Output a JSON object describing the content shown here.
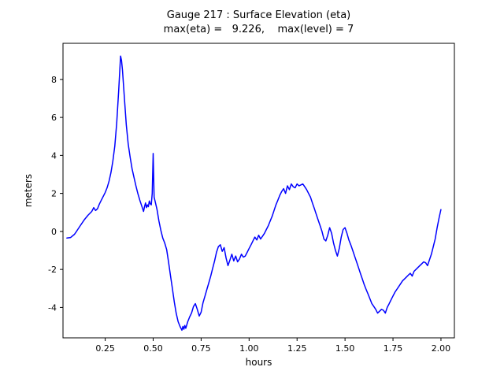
{
  "figure": {
    "background": "#ffffff",
    "axis_color": "#000000"
  },
  "chart_data": {
    "type": "line",
    "title": "Gauge 217 : Surface Elevation (eta)",
    "subtitle": "max(eta) =   9.226,    max(level) = 7",
    "xlabel": "hours",
    "ylabel": "meters",
    "xlim": [
      0.03,
      2.07
    ],
    "ylim": [
      -5.6,
      9.9
    ],
    "xticks": [
      0.25,
      0.5,
      0.75,
      1.0,
      1.25,
      1.5,
      1.75,
      2.0
    ],
    "xtick_labels": [
      "0.25",
      "0.50",
      "0.75",
      "1.00",
      "1.25",
      "1.50",
      "1.75",
      "2.00"
    ],
    "yticks": [
      -4,
      -2,
      0,
      2,
      4,
      6,
      8
    ],
    "ytick_labels": [
      "-4",
      "-2",
      "0",
      "2",
      "4",
      "6",
      "8"
    ],
    "grid": false,
    "legend": "none",
    "line_color": "#0000ff",
    "max_eta": 9.226,
    "max_level": 7,
    "series": [
      {
        "name": "eta",
        "points": [
          [
            0.05,
            -0.35
          ],
          [
            0.07,
            -0.32
          ],
          [
            0.09,
            -0.15
          ],
          [
            0.1,
            0.0
          ],
          [
            0.12,
            0.3
          ],
          [
            0.14,
            0.6
          ],
          [
            0.16,
            0.85
          ],
          [
            0.18,
            1.05
          ],
          [
            0.19,
            1.25
          ],
          [
            0.2,
            1.1
          ],
          [
            0.21,
            1.2
          ],
          [
            0.22,
            1.45
          ],
          [
            0.23,
            1.65
          ],
          [
            0.24,
            1.85
          ],
          [
            0.25,
            2.05
          ],
          [
            0.26,
            2.3
          ],
          [
            0.27,
            2.65
          ],
          [
            0.28,
            3.1
          ],
          [
            0.29,
            3.7
          ],
          [
            0.3,
            4.5
          ],
          [
            0.31,
            5.7
          ],
          [
            0.32,
            7.4
          ],
          [
            0.33,
            9.23
          ],
          [
            0.335,
            9.0
          ],
          [
            0.34,
            8.5
          ],
          [
            0.35,
            7.0
          ],
          [
            0.36,
            5.6
          ],
          [
            0.37,
            4.6
          ],
          [
            0.38,
            3.9
          ],
          [
            0.39,
            3.3
          ],
          [
            0.4,
            2.85
          ],
          [
            0.41,
            2.4
          ],
          [
            0.42,
            2.0
          ],
          [
            0.43,
            1.65
          ],
          [
            0.44,
            1.35
          ],
          [
            0.45,
            1.05
          ],
          [
            0.455,
            1.3
          ],
          [
            0.46,
            1.5
          ],
          [
            0.465,
            1.25
          ],
          [
            0.47,
            1.4
          ],
          [
            0.475,
            1.3
          ],
          [
            0.48,
            1.6
          ],
          [
            0.485,
            1.45
          ],
          [
            0.49,
            1.4
          ],
          [
            0.495,
            2.0
          ],
          [
            0.5,
            4.1
          ],
          [
            0.505,
            1.8
          ],
          [
            0.51,
            1.6
          ],
          [
            0.52,
            1.15
          ],
          [
            0.53,
            0.55
          ],
          [
            0.54,
            0.05
          ],
          [
            0.55,
            -0.35
          ],
          [
            0.56,
            -0.6
          ],
          [
            0.57,
            -0.95
          ],
          [
            0.58,
            -1.6
          ],
          [
            0.59,
            -2.3
          ],
          [
            0.6,
            -3.0
          ],
          [
            0.61,
            -3.7
          ],
          [
            0.62,
            -4.3
          ],
          [
            0.63,
            -4.75
          ],
          [
            0.64,
            -5.0
          ],
          [
            0.65,
            -5.2
          ],
          [
            0.655,
            -5.0
          ],
          [
            0.66,
            -5.15
          ],
          [
            0.665,
            -4.95
          ],
          [
            0.67,
            -5.1
          ],
          [
            0.68,
            -4.75
          ],
          [
            0.69,
            -4.5
          ],
          [
            0.7,
            -4.3
          ],
          [
            0.71,
            -3.95
          ],
          [
            0.72,
            -3.8
          ],
          [
            0.73,
            -4.1
          ],
          [
            0.74,
            -4.45
          ],
          [
            0.75,
            -4.25
          ],
          [
            0.76,
            -3.75
          ],
          [
            0.77,
            -3.4
          ],
          [
            0.78,
            -3.05
          ],
          [
            0.79,
            -2.7
          ],
          [
            0.8,
            -2.35
          ],
          [
            0.81,
            -1.95
          ],
          [
            0.82,
            -1.55
          ],
          [
            0.83,
            -1.1
          ],
          [
            0.84,
            -0.8
          ],
          [
            0.85,
            -0.7
          ],
          [
            0.86,
            -1.05
          ],
          [
            0.87,
            -0.85
          ],
          [
            0.88,
            -1.4
          ],
          [
            0.89,
            -1.8
          ],
          [
            0.9,
            -1.5
          ],
          [
            0.91,
            -1.2
          ],
          [
            0.92,
            -1.55
          ],
          [
            0.93,
            -1.3
          ],
          [
            0.94,
            -1.6
          ],
          [
            0.95,
            -1.45
          ],
          [
            0.96,
            -1.2
          ],
          [
            0.97,
            -1.35
          ],
          [
            0.98,
            -1.3
          ],
          [
            0.99,
            -1.1
          ],
          [
            1.0,
            -0.9
          ],
          [
            1.01,
            -0.7
          ],
          [
            1.02,
            -0.5
          ],
          [
            1.03,
            -0.3
          ],
          [
            1.04,
            -0.45
          ],
          [
            1.05,
            -0.2
          ],
          [
            1.06,
            -0.4
          ],
          [
            1.07,
            -0.25
          ],
          [
            1.08,
            -0.1
          ],
          [
            1.09,
            0.1
          ],
          [
            1.1,
            0.3
          ],
          [
            1.11,
            0.55
          ],
          [
            1.12,
            0.8
          ],
          [
            1.13,
            1.1
          ],
          [
            1.14,
            1.4
          ],
          [
            1.15,
            1.65
          ],
          [
            1.16,
            1.9
          ],
          [
            1.17,
            2.1
          ],
          [
            1.18,
            2.25
          ],
          [
            1.19,
            2.0
          ],
          [
            1.2,
            2.4
          ],
          [
            1.21,
            2.2
          ],
          [
            1.22,
            2.5
          ],
          [
            1.23,
            2.35
          ],
          [
            1.24,
            2.3
          ],
          [
            1.25,
            2.5
          ],
          [
            1.26,
            2.4
          ],
          [
            1.27,
            2.45
          ],
          [
            1.28,
            2.5
          ],
          [
            1.29,
            2.35
          ],
          [
            1.3,
            2.2
          ],
          [
            1.31,
            2.0
          ],
          [
            1.32,
            1.8
          ],
          [
            1.33,
            1.5
          ],
          [
            1.34,
            1.2
          ],
          [
            1.35,
            0.9
          ],
          [
            1.36,
            0.6
          ],
          [
            1.37,
            0.3
          ],
          [
            1.38,
            0.0
          ],
          [
            1.39,
            -0.4
          ],
          [
            1.4,
            -0.5
          ],
          [
            1.41,
            -0.2
          ],
          [
            1.42,
            0.2
          ],
          [
            1.43,
            -0.1
          ],
          [
            1.44,
            -0.6
          ],
          [
            1.45,
            -1.0
          ],
          [
            1.46,
            -1.3
          ],
          [
            1.47,
            -0.9
          ],
          [
            1.48,
            -0.3
          ],
          [
            1.49,
            0.1
          ],
          [
            1.5,
            0.2
          ],
          [
            1.51,
            -0.1
          ],
          [
            1.52,
            -0.45
          ],
          [
            1.53,
            -0.7
          ],
          [
            1.54,
            -1.0
          ],
          [
            1.55,
            -1.3
          ],
          [
            1.56,
            -1.6
          ],
          [
            1.57,
            -1.9
          ],
          [
            1.58,
            -2.2
          ],
          [
            1.59,
            -2.5
          ],
          [
            1.6,
            -2.8
          ],
          [
            1.61,
            -3.05
          ],
          [
            1.62,
            -3.3
          ],
          [
            1.63,
            -3.55
          ],
          [
            1.64,
            -3.8
          ],
          [
            1.65,
            -3.95
          ],
          [
            1.66,
            -4.1
          ],
          [
            1.67,
            -4.3
          ],
          [
            1.68,
            -4.2
          ],
          [
            1.69,
            -4.1
          ],
          [
            1.7,
            -4.15
          ],
          [
            1.71,
            -4.3
          ],
          [
            1.72,
            -4.0
          ],
          [
            1.73,
            -3.8
          ],
          [
            1.74,
            -3.6
          ],
          [
            1.75,
            -3.4
          ],
          [
            1.76,
            -3.2
          ],
          [
            1.77,
            -3.05
          ],
          [
            1.78,
            -2.9
          ],
          [
            1.79,
            -2.75
          ],
          [
            1.8,
            -2.6
          ],
          [
            1.81,
            -2.5
          ],
          [
            1.82,
            -2.4
          ],
          [
            1.83,
            -2.3
          ],
          [
            1.84,
            -2.2
          ],
          [
            1.85,
            -2.35
          ],
          [
            1.86,
            -2.1
          ],
          [
            1.87,
            -2.0
          ],
          [
            1.88,
            -1.9
          ],
          [
            1.89,
            -1.8
          ],
          [
            1.9,
            -1.7
          ],
          [
            1.91,
            -1.6
          ],
          [
            1.92,
            -1.65
          ],
          [
            1.93,
            -1.8
          ],
          [
            1.94,
            -1.5
          ],
          [
            1.95,
            -1.2
          ],
          [
            1.96,
            -0.8
          ],
          [
            1.97,
            -0.4
          ],
          [
            1.98,
            0.2
          ],
          [
            1.99,
            0.7
          ],
          [
            2.0,
            1.15
          ]
        ]
      }
    ]
  }
}
